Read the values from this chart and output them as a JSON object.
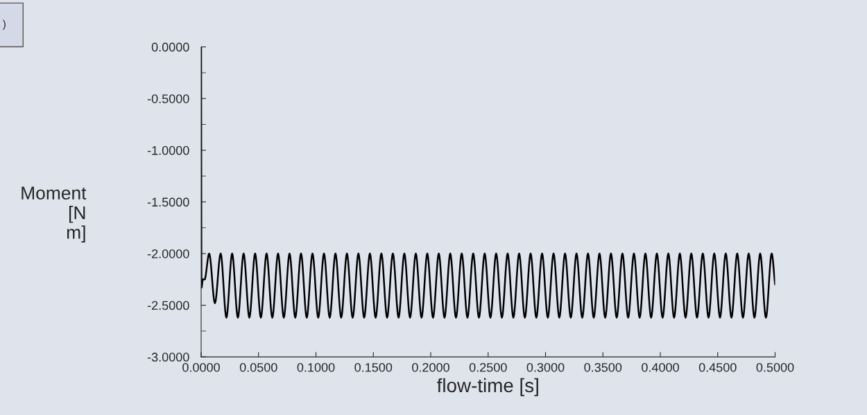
{
  "chart_data": {
    "type": "line",
    "xlabel": "flow-time [s]",
    "ylabel": "Moment\n[N\nm]",
    "annotations": [
      ")"
    ],
    "x": [
      0,
      0.0003,
      0.0015,
      0.003,
      0.007,
      0.012,
      0.017,
      0.022,
      0.027,
      0.032,
      0.037,
      0.042,
      0.047,
      0.052,
      0.057,
      0.062,
      0.067,
      0.072,
      0.077,
      0.082,
      0.087,
      0.092,
      0.097,
      0.102,
      0.107,
      0.112,
      0.117,
      0.122,
      0.127,
      0.132,
      0.137,
      0.142,
      0.147,
      0.152,
      0.157,
      0.162,
      0.167,
      0.172,
      0.177,
      0.182,
      0.187,
      0.192,
      0.197,
      0.202,
      0.207,
      0.212,
      0.217,
      0.222,
      0.227,
      0.232,
      0.237,
      0.242,
      0.247,
      0.252,
      0.257,
      0.262,
      0.267,
      0.272,
      0.277,
      0.282,
      0.287,
      0.292,
      0.297,
      0.302,
      0.307,
      0.312,
      0.317,
      0.322,
      0.327,
      0.332,
      0.337,
      0.342,
      0.347,
      0.352,
      0.357,
      0.362,
      0.367,
      0.372,
      0.377,
      0.382,
      0.387,
      0.392,
      0.397,
      0.402,
      0.407,
      0.412,
      0.417,
      0.422,
      0.427,
      0.432,
      0.437,
      0.442,
      0.447,
      0.452,
      0.457,
      0.462,
      0.467,
      0.472,
      0.477,
      0.482,
      0.487,
      0.492,
      0.497,
      0.5
    ],
    "series": [
      {
        "color": "#000000",
        "values": [
          0,
          -2.33,
          -2.25,
          -2.25,
          -2.0,
          -2.48,
          -2.0,
          -2.62,
          -2.0,
          -2.62,
          -2.0,
          -2.62,
          -2.0,
          -2.62,
          -2.0,
          -2.62,
          -2.0,
          -2.62,
          -2.0,
          -2.62,
          -2.0,
          -2.62,
          -2.0,
          -2.62,
          -2.0,
          -2.62,
          -2.0,
          -2.62,
          -2.0,
          -2.62,
          -2.0,
          -2.62,
          -2.0,
          -2.62,
          -2.0,
          -2.62,
          -2.0,
          -2.62,
          -2.0,
          -2.62,
          -2.0,
          -2.62,
          -2.0,
          -2.62,
          -2.0,
          -2.62,
          -2.0,
          -2.62,
          -2.0,
          -2.62,
          -2.0,
          -2.62,
          -2.0,
          -2.62,
          -2.0,
          -2.62,
          -2.0,
          -2.62,
          -2.0,
          -2.62,
          -2.0,
          -2.62,
          -2.0,
          -2.62,
          -2.0,
          -2.62,
          -2.0,
          -2.62,
          -2.0,
          -2.62,
          -2.0,
          -2.62,
          -2.0,
          -2.62,
          -2.0,
          -2.62,
          -2.0,
          -2.62,
          -2.0,
          -2.62,
          -2.0,
          -2.62,
          -2.0,
          -2.62,
          -2.0,
          -2.62,
          -2.0,
          -2.62,
          -2.0,
          -2.62,
          -2.0,
          -2.62,
          -2.0,
          -2.62,
          -2.0,
          -2.62,
          -2.0,
          -2.62,
          -2.0,
          -2.62,
          -2.0,
          -2.62,
          -2.0,
          -2.3
        ]
      }
    ],
    "xlim": [
      0,
      0.5
    ],
    "xticks": [
      {
        "value": 0,
        "label": "0.0000"
      },
      {
        "value": 0.05,
        "label": "0.0500"
      },
      {
        "value": 0.1,
        "label": "0.1000"
      },
      {
        "value": 0.15,
        "label": "0.1500"
      },
      {
        "value": 0.2,
        "label": "0.2000"
      },
      {
        "value": 0.25,
        "label": "0.2500"
      },
      {
        "value": 0.3,
        "label": "0.3000"
      },
      {
        "value": 0.35,
        "label": "0.3500"
      },
      {
        "value": 0.4,
        "label": "0.4000"
      },
      {
        "value": 0.45,
        "label": "0.4500"
      },
      {
        "value": 0.5,
        "label": "0.5000"
      }
    ],
    "ylim": [
      -3,
      0
    ],
    "yticks": [
      {
        "value": -3,
        "label": "-3.0000"
      },
      {
        "value": -2.5,
        "label": "-2.5000"
      },
      {
        "value": -2,
        "label": "-2.0000"
      },
      {
        "value": -1.5,
        "label": "-1.5000"
      },
      {
        "value": -1,
        "label": "-1.0000"
      },
      {
        "value": -0.5,
        "label": "-0.5000"
      },
      {
        "value": 0,
        "label": "0.0000"
      }
    ],
    "grid": false,
    "legend": false,
    "marker": "none",
    "line_style": "solid"
  }
}
